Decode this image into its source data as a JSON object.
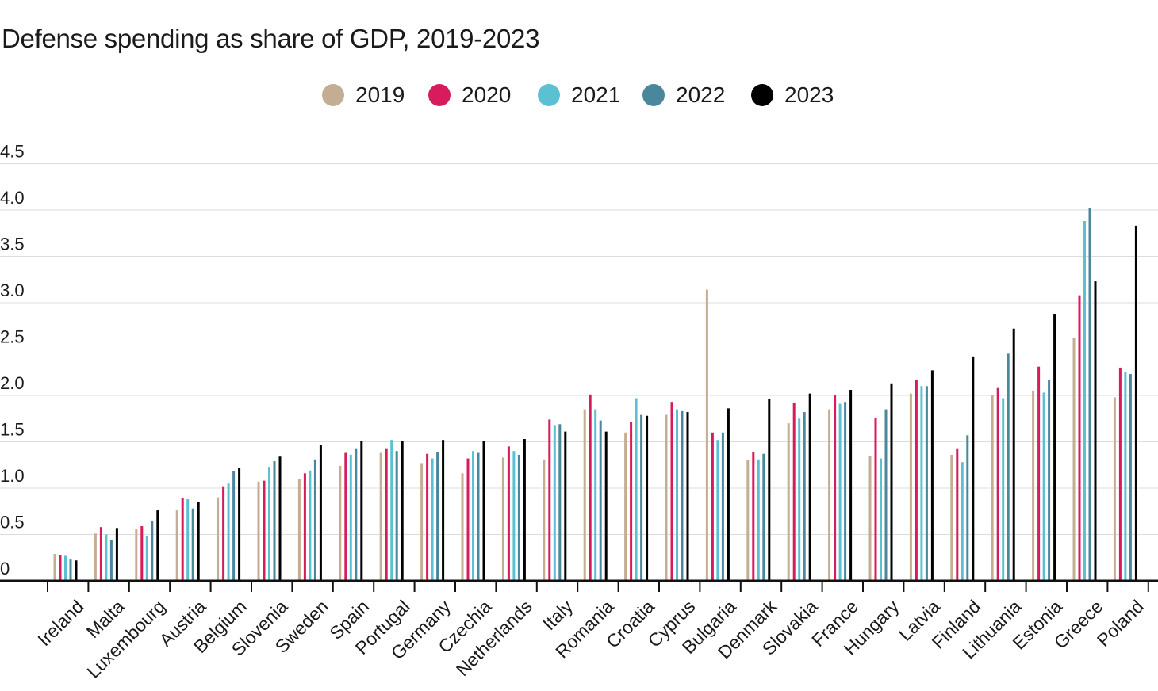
{
  "chart_data": {
    "type": "bar",
    "title": "Defense spending as share of GDP, 2019-2023",
    "xlabel": "",
    "ylabel": "",
    "ylim": [
      0,
      4.5
    ],
    "yticks": [
      "0",
      "0.5",
      "1.0",
      "1.5",
      "2.0",
      "2.5",
      "3.0",
      "3.5",
      "4.0",
      "4.5"
    ],
    "grid": true,
    "legend_position": "top",
    "categories": [
      "Ireland",
      "Malta",
      "Luxembourg",
      "Austria",
      "Belgium",
      "Slovenia",
      "Sweden",
      "Spain",
      "Portugal",
      "Germany",
      "Czechia",
      "Netherlands",
      "Italy",
      "Romania",
      "Croatia",
      "Cyprus",
      "Bulgaria",
      "Denmark",
      "Slovakia",
      "France",
      "Hungary",
      "Latvia",
      "Finland",
      "Lithuania",
      "Estonia",
      "Greece",
      "Poland"
    ],
    "series": [
      {
        "name": "2019",
        "color": "#c4ae93",
        "values": [
          0.29,
          0.51,
          0.56,
          0.76,
          0.9,
          1.07,
          1.1,
          1.24,
          1.38,
          1.27,
          1.16,
          1.33,
          1.31,
          1.85,
          1.6,
          1.79,
          3.14,
          1.3,
          1.7,
          1.85,
          1.35,
          2.02,
          1.36,
          2.0,
          2.05,
          2.62,
          1.98
        ]
      },
      {
        "name": "2020",
        "color": "#d81b5c",
        "values": [
          0.28,
          0.58,
          0.59,
          0.89,
          1.02,
          1.08,
          1.16,
          1.38,
          1.43,
          1.37,
          1.32,
          1.45,
          1.74,
          2.01,
          1.71,
          1.93,
          1.6,
          1.39,
          1.92,
          2.0,
          1.76,
          2.17,
          1.43,
          2.08,
          2.31,
          3.08,
          2.3
        ]
      },
      {
        "name": "2021",
        "color": "#5bc0d3",
        "values": [
          0.27,
          0.5,
          0.48,
          0.88,
          1.05,
          1.23,
          1.19,
          1.36,
          1.52,
          1.32,
          1.4,
          1.4,
          1.68,
          1.85,
          1.97,
          1.85,
          1.52,
          1.31,
          1.75,
          1.91,
          1.32,
          2.1,
          1.28,
          1.97,
          2.03,
          3.88,
          2.25
        ]
      },
      {
        "name": "2022",
        "color": "#4a879c",
        "values": [
          0.23,
          0.44,
          0.65,
          0.78,
          1.18,
          1.29,
          1.31,
          1.43,
          1.4,
          1.39,
          1.38,
          1.36,
          1.69,
          1.73,
          1.79,
          1.83,
          1.6,
          1.37,
          1.82,
          1.93,
          1.85,
          2.1,
          1.57,
          2.45,
          2.17,
          4.02,
          2.23
        ]
      },
      {
        "name": "2023",
        "color": "#000000",
        "values": [
          0.22,
          0.57,
          0.76,
          0.85,
          1.22,
          1.34,
          1.47,
          1.51,
          1.51,
          1.52,
          1.51,
          1.53,
          1.61,
          1.61,
          1.78,
          1.82,
          1.86,
          1.96,
          2.02,
          2.06,
          2.13,
          2.27,
          2.42,
          2.72,
          2.88,
          3.23,
          3.83
        ]
      }
    ]
  }
}
